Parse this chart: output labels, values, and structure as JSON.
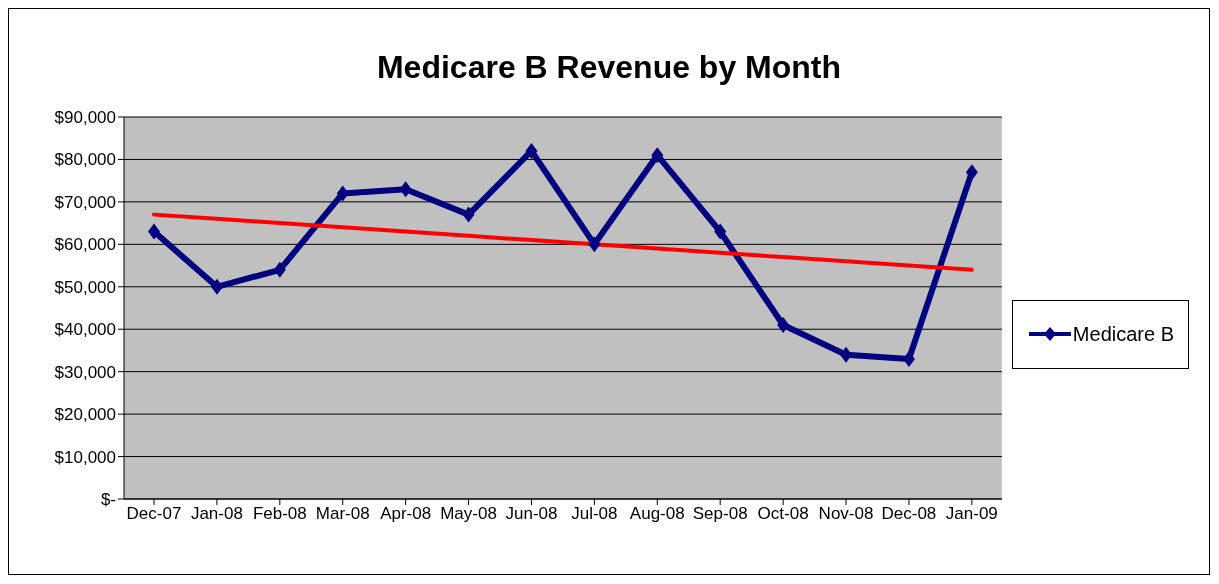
{
  "chart_data": {
    "type": "line",
    "title": "Medicare B Revenue by Month",
    "categories": [
      "Dec-07",
      "Jan-08",
      "Feb-08",
      "Mar-08",
      "Apr-08",
      "May-08",
      "Jun-08",
      "Jul-08",
      "Aug-08",
      "Sep-08",
      "Oct-08",
      "Nov-08",
      "Dec-08",
      "Jan-09"
    ],
    "series": [
      {
        "name": "Medicare B",
        "color": "#000080",
        "marker": "diamond",
        "values": [
          63000,
          50000,
          54000,
          72000,
          73000,
          67000,
          82000,
          60000,
          81000,
          63000,
          41000,
          34000,
          33000,
          77000
        ]
      },
      {
        "color": "#ff0000",
        "marker": "none",
        "values": [
          67000,
          66000,
          65000,
          64000,
          63000,
          62000,
          61000,
          60000,
          59000,
          58000,
          57000,
          56000,
          55000,
          54000
        ]
      }
    ],
    "ylim": [
      0,
      90000
    ],
    "yticks": [
      {
        "value": 0,
        "label": "$-"
      },
      {
        "value": 10000,
        "label": "$10,000"
      },
      {
        "value": 20000,
        "label": "$20,000"
      },
      {
        "value": 30000,
        "label": "$30,000"
      },
      {
        "value": 40000,
        "label": "$40,000"
      },
      {
        "value": 50000,
        "label": "$50,000"
      },
      {
        "value": 60000,
        "label": "$60,000"
      },
      {
        "value": 70000,
        "label": "$70,000"
      },
      {
        "value": 80000,
        "label": "$80,000"
      },
      {
        "value": 90000,
        "label": "$90,000"
      }
    ],
    "grid": "y",
    "legend": "right",
    "line_style": "solid"
  }
}
